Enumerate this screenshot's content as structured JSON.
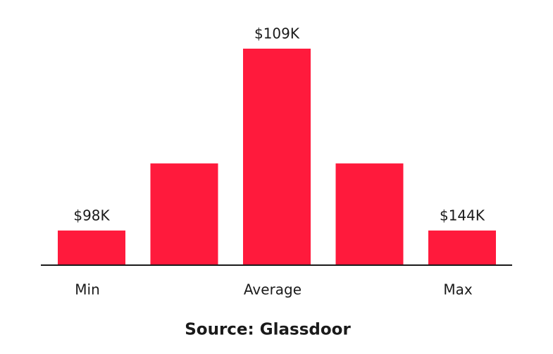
{
  "chart_data": {
    "type": "bar",
    "categories": [
      "Min",
      null,
      "Average",
      null,
      "Max"
    ],
    "values": [
      16,
      47,
      100,
      47,
      16
    ],
    "bar_labels": [
      "$98K",
      null,
      "$109K",
      null,
      "$144K"
    ],
    "color": "#ff1a3c",
    "source": "Source: Glassdoor"
  }
}
